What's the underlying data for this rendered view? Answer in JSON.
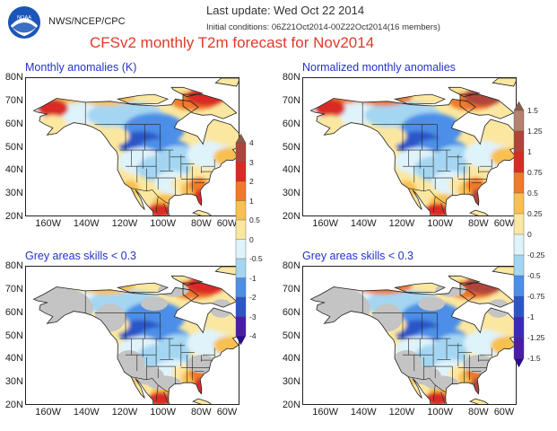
{
  "header": {
    "logo_icon": "noaa-logo",
    "logo_text": "NOAA",
    "agency": "NWS/NCEP/CPC",
    "last_update": "Last update: Wed Oct 22 2014",
    "initial_conditions": "Initial conditions: 06Z21Oct2014-00Z22Oct2014(16 members)",
    "title": "CFSv2 monthly T2m forecast for Nov2014"
  },
  "axes": {
    "lat_labels": [
      "80N",
      "70N",
      "60N",
      "50N",
      "40N",
      "30N",
      "20N"
    ],
    "lon_labels": [
      "160W",
      "140W",
      "120W",
      "100W",
      "80W",
      "60W"
    ]
  },
  "panels": [
    {
      "id": "top-left",
      "title": "Monthly anomalies (K)",
      "grey_mask": false,
      "style": "anom"
    },
    {
      "id": "top-right",
      "title": "Normalized monthly anomalies",
      "grey_mask": false,
      "style": "norm"
    },
    {
      "id": "bottom-left",
      "title": "Grey areas skills < 0.3",
      "grey_mask": true,
      "style": "anom"
    },
    {
      "id": "bottom-right",
      "title": "Grey areas skills < 0.3",
      "grey_mask": true,
      "style": "norm"
    }
  ],
  "colorbars": {
    "anomaly": {
      "labels": [
        "4",
        "3",
        "2",
        "1",
        "0.5",
        "0",
        "-0.5",
        "-1",
        "-2",
        "-3",
        "-4"
      ],
      "colors": [
        "#8a5a4a",
        "#b0443a",
        "#d92b25",
        "#f07a2a",
        "#f8c050",
        "#fbe7a0",
        "#dff3fb",
        "#a4d6f2",
        "#4c8fe8",
        "#2c56c8",
        "#4a1ca8",
        "#2a0a90"
      ]
    },
    "normalized": {
      "labels": [
        "1.5",
        "1.25",
        "1",
        "0.75",
        "0.5",
        "0.25",
        "0",
        "-0.25",
        "-0.5",
        "-0.75",
        "-1",
        "-1.25",
        "-1.5"
      ],
      "colors": [
        "#8a5a4a",
        "#b5806e",
        "#b0443a",
        "#d92b25",
        "#f07a2a",
        "#f8c050",
        "#fbe7a0",
        "#dff3fb",
        "#a4d6f2",
        "#4c8fe8",
        "#2c56c8",
        "#3a2ab8",
        "#4a1ca8",
        "#2a0a90"
      ]
    }
  },
  "colors": {
    "ocean": "#ffffff",
    "land_grey": "#c4c4c4",
    "border": "#222222",
    "title_red": "#e03a2a",
    "panel_title_blue": "#2233cc"
  }
}
